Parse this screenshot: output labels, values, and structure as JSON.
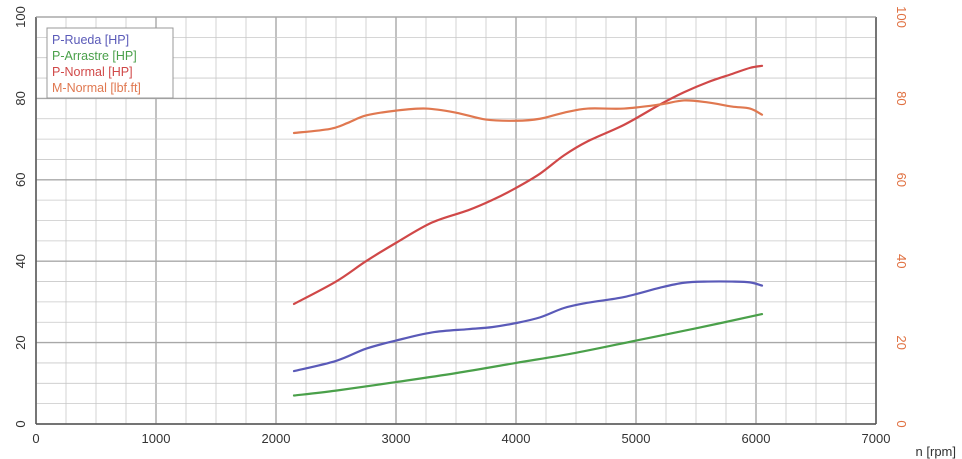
{
  "chart_data": {
    "type": "line",
    "xlabel": "n [rpm]",
    "xlim": [
      0,
      7000
    ],
    "ylim_left": [
      0,
      100
    ],
    "ylim_right": [
      0,
      100
    ],
    "x_ticks": [
      "0",
      "1000",
      "2000",
      "3000",
      "4000",
      "5000",
      "6000",
      "7000"
    ],
    "y_ticks_left": [
      "0",
      "20",
      "40",
      "60",
      "80",
      "100"
    ],
    "y_ticks_right": [
      "0",
      "20",
      "40",
      "60",
      "80",
      "100"
    ],
    "grid": true,
    "legend_position": "top-left",
    "colors": {
      "grid": "#c8c8c8",
      "axis": "#555555",
      "left_ticks": "#333333",
      "right_ticks": "#e07040"
    },
    "series": [
      {
        "name": "P-Rueda [HP]",
        "color": "#5a5ab8",
        "axis": "left",
        "x": [
          2150,
          2500,
          2750,
          3000,
          3300,
          3600,
          3800,
          4000,
          4200,
          4400,
          4600,
          4900,
          5200,
          5400,
          5600,
          5800,
          5950,
          6050
        ],
        "y": [
          13,
          15.5,
          18.5,
          20.5,
          22.5,
          23.3,
          23.8,
          24.8,
          26.2,
          28.5,
          29.8,
          31.2,
          33.5,
          34.7,
          35,
          35,
          34.8,
          34
        ]
      },
      {
        "name": "P-Arrastre [HP]",
        "color": "#4aa04a",
        "axis": "left",
        "x": [
          2150,
          2500,
          3000,
          3500,
          4000,
          4500,
          5000,
          5500,
          6050
        ],
        "y": [
          7,
          8.2,
          10.3,
          12.5,
          15,
          17.5,
          20.5,
          23.5,
          27
        ]
      },
      {
        "name": "P-Normal [HP]",
        "color": "#d04848",
        "axis": "left",
        "x": [
          2150,
          2500,
          2750,
          3000,
          3300,
          3600,
          3800,
          4000,
          4200,
          4400,
          4600,
          4900,
          5200,
          5400,
          5600,
          5800,
          5950,
          6050
        ],
        "y": [
          29.5,
          35,
          40,
          44.5,
          49.5,
          52.5,
          55,
          58,
          61.5,
          66,
          69.5,
          73.5,
          78.5,
          81.5,
          84,
          86,
          87.5,
          88
        ]
      },
      {
        "name": "M-Normal [lbf.ft]",
        "color": "#e07850",
        "axis": "right",
        "x": [
          2150,
          2450,
          2600,
          2750,
          3000,
          3250,
          3500,
          3750,
          4000,
          4200,
          4400,
          4600,
          4900,
          5200,
          5400,
          5600,
          5800,
          5950,
          6050
        ],
        "y": [
          71.5,
          72.5,
          74,
          75.8,
          77,
          77.5,
          76.5,
          74.8,
          74.5,
          75,
          76.5,
          77.5,
          77.5,
          78.5,
          79.5,
          79,
          78,
          77.5,
          76
        ]
      }
    ]
  }
}
